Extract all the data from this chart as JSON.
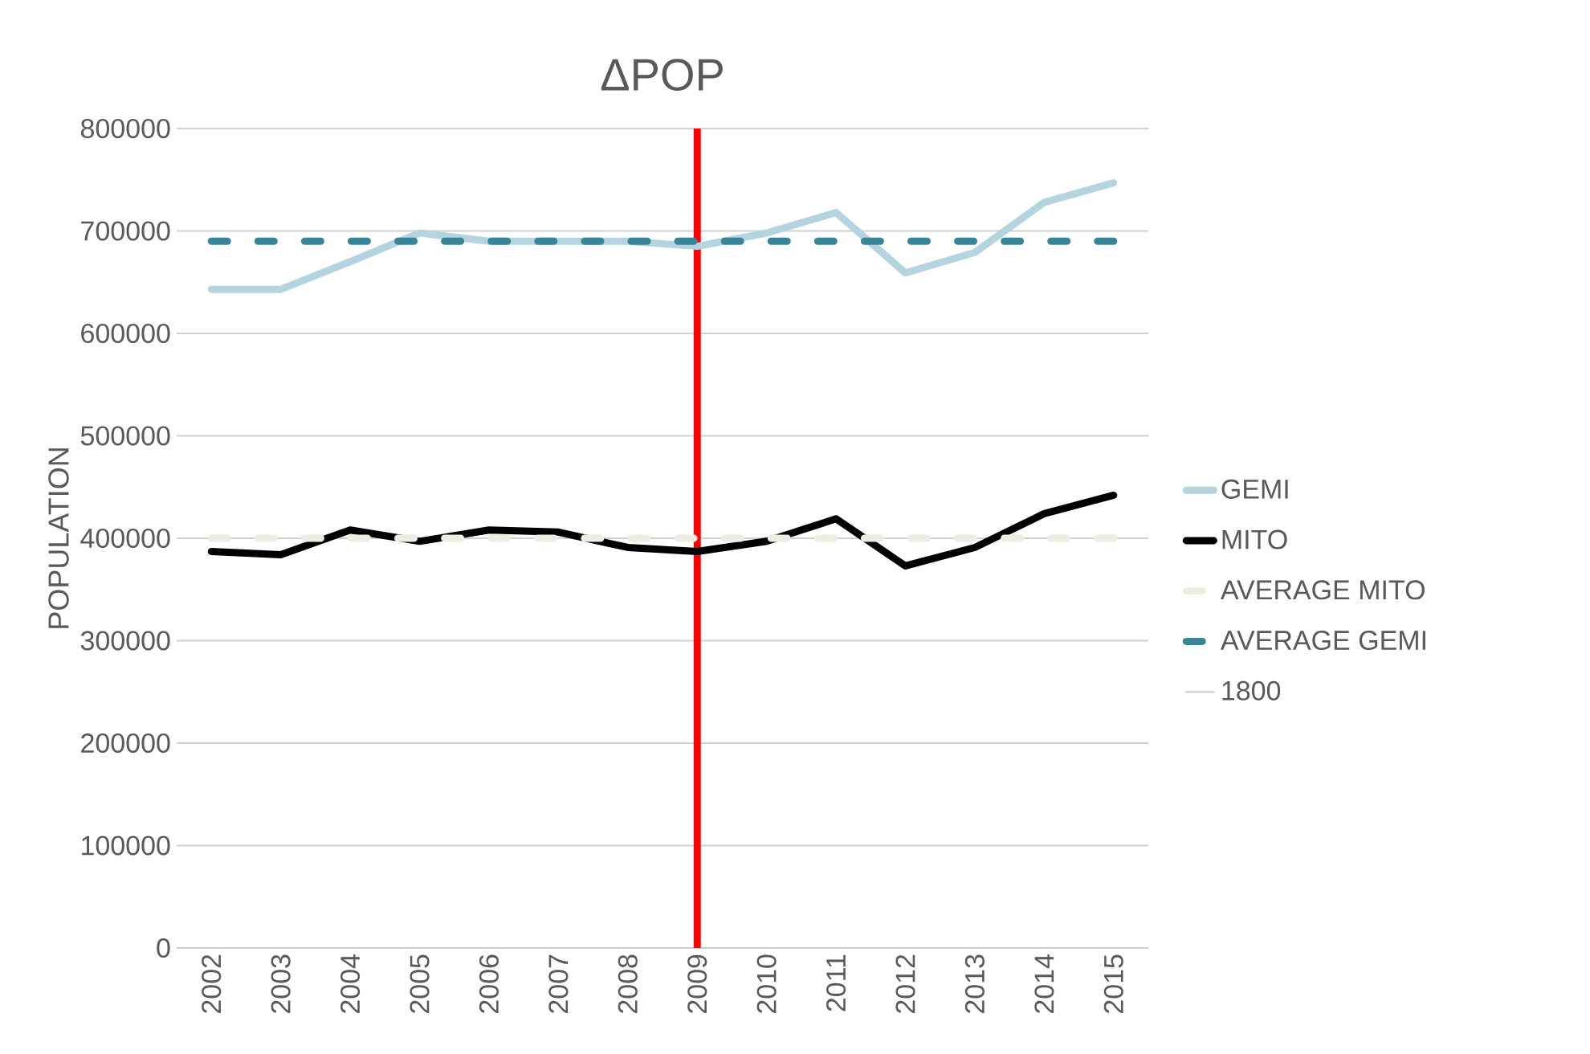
{
  "chart_data": {
    "type": "line",
    "title": "ΔPOP",
    "ylabel": "POPULATION",
    "categories": [
      "2002",
      "2003",
      "2004",
      "2005",
      "2006",
      "2007",
      "2008",
      "2009",
      "2010",
      "2011",
      "2012",
      "2013",
      "2014",
      "2015"
    ],
    "series": [
      {
        "name": "GEMI",
        "color": "#b4d4df",
        "values": [
          643000,
          643000,
          670000,
          698000,
          690000,
          690000,
          690000,
          685000,
          698000,
          718000,
          659000,
          679000,
          728000,
          747000
        ]
      },
      {
        "name": "MITO",
        "color": "#000000",
        "values": [
          387000,
          384000,
          408000,
          397000,
          408000,
          406000,
          391000,
          387000,
          397000,
          419000,
          373000,
          391000,
          424000,
          442000
        ]
      },
      {
        "name": "AVERAGE MITO",
        "color": "#eeede3",
        "line_style": "dashed",
        "values": [
          400000,
          400000,
          400000,
          400000,
          400000,
          400000,
          400000,
          400000,
          400000,
          400000,
          400000,
          400000,
          400000,
          400000
        ]
      },
      {
        "name": "AVERAGE GEMI",
        "color": "#3a8498",
        "line_style": "dashed",
        "values": [
          690000,
          690000,
          690000,
          690000,
          690000,
          690000,
          690000,
          690000,
          690000,
          690000,
          690000,
          690000,
          690000,
          690000
        ]
      },
      {
        "name": "1800",
        "color": "#d9d9d9",
        "values": [
          null,
          null,
          null,
          null,
          null,
          null,
          null,
          null,
          null,
          null,
          null,
          null,
          null,
          null
        ]
      }
    ],
    "ylim": [
      0,
      800000
    ],
    "yticks": [
      0,
      100000,
      200000,
      300000,
      400000,
      500000,
      600000,
      700000,
      800000
    ],
    "ref_lines": [
      {
        "axis": "x",
        "value": "2009",
        "color": "#ff0000"
      }
    ],
    "grid": "y",
    "legend": "right",
    "marker": "none"
  }
}
